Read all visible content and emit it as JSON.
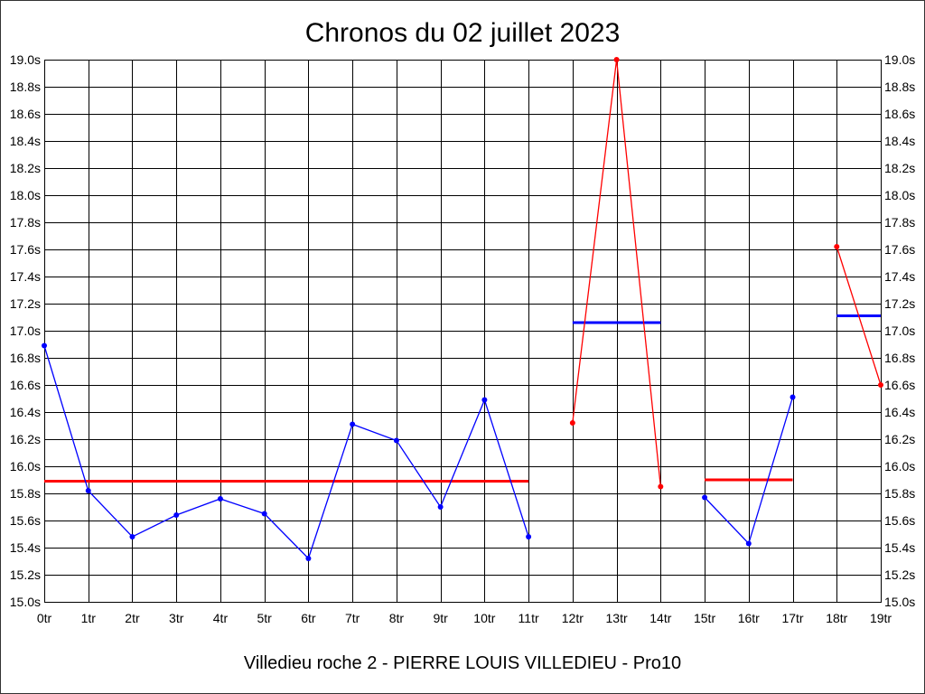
{
  "chart_data": {
    "type": "line",
    "title": "Chronos du 02 juillet 2023",
    "subtitle": "Villedieu roche 2 - PIERRE LOUIS VILLEDIEU - Pro10",
    "xlim": [
      0,
      19
    ],
    "ylim": [
      15.0,
      19.0
    ],
    "y_step": 0.2,
    "grid": true,
    "grid_color": "#000000",
    "y_axis_sides": [
      "left",
      "right"
    ],
    "x_tick_labels": [
      "0tr",
      "1tr",
      "2tr",
      "3tr",
      "4tr",
      "5tr",
      "6tr",
      "7tr",
      "8tr",
      "9tr",
      "10tr",
      "11tr",
      "12tr",
      "13tr",
      "14tr",
      "15tr",
      "16tr",
      "17tr",
      "18tr",
      "19tr"
    ],
    "y_tick_labels": [
      "15.0s",
      "15.2s",
      "15.4s",
      "15.6s",
      "15.8s",
      "16.0s",
      "16.2s",
      "16.4s",
      "16.6s",
      "16.8s",
      "17.0s",
      "17.2s",
      "17.4s",
      "17.6s",
      "17.8s",
      "18.0s",
      "18.2s",
      "18.4s",
      "18.6s",
      "18.8s",
      "19.0s"
    ],
    "series": [
      {
        "color": "#0000ff",
        "marker": "circle",
        "x": [
          0,
          1,
          2,
          3,
          4,
          5,
          6,
          7,
          8,
          9,
          10,
          11
        ],
        "values": [
          16.89,
          15.82,
          15.48,
          15.64,
          15.76,
          15.65,
          15.32,
          16.31,
          16.19,
          15.7,
          16.49,
          15.48
        ]
      },
      {
        "color": "#ff0000",
        "marker": "circle",
        "x": [
          12,
          13,
          14
        ],
        "values": [
          16.32,
          19.0,
          15.85
        ]
      },
      {
        "color": "#0000ff",
        "marker": "circle",
        "x": [
          15,
          16,
          17
        ],
        "values": [
          15.77,
          15.43,
          16.51
        ]
      },
      {
        "color": "#ff0000",
        "marker": "circle",
        "x": [
          18,
          19
        ],
        "values": [
          17.62,
          16.6
        ]
      }
    ],
    "average_lines": [
      {
        "color": "#ff0000",
        "x": [
          0,
          11
        ],
        "value": 15.89
      },
      {
        "color": "#0000ff",
        "x": [
          12,
          14
        ],
        "value": 17.06
      },
      {
        "color": "#ff0000",
        "x": [
          15,
          17
        ],
        "value": 15.9
      },
      {
        "color": "#0000ff",
        "x": [
          18,
          19
        ],
        "value": 17.11
      }
    ]
  }
}
